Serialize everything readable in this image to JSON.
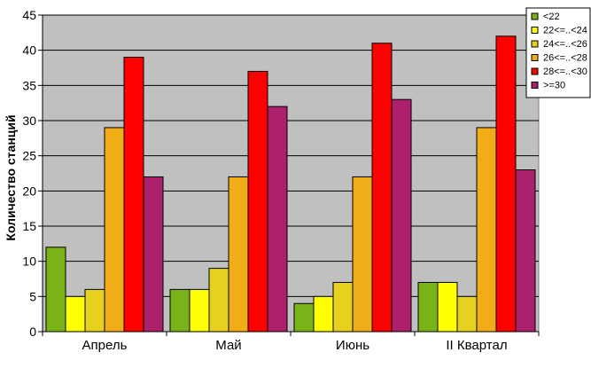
{
  "chart_data": {
    "type": "bar",
    "title": "",
    "xlabel": "",
    "ylabel": "Количество станций",
    "ylim": [
      0,
      45
    ],
    "yticks": [
      0,
      5,
      10,
      15,
      20,
      25,
      30,
      35,
      40,
      45
    ],
    "grid": true,
    "legend_position": "top-right",
    "plot_background": "#c0c0c0",
    "categories": [
      "Апрель",
      "Май",
      "Июнь",
      "II Квартал"
    ],
    "series": [
      {
        "name": "<22",
        "color": "#7ab317",
        "values": [
          12,
          6,
          4,
          7
        ]
      },
      {
        "name": "22<=..<24",
        "color": "#ffff00",
        "values": [
          5,
          6,
          5,
          7
        ]
      },
      {
        "name": "24<=..<26",
        "color": "#e6d21e",
        "values": [
          6,
          9,
          7,
          5
        ]
      },
      {
        "name": "26<=..<28",
        "color": "#f0ad17",
        "values": [
          29,
          22,
          22,
          29
        ]
      },
      {
        "name": "28<=..<30",
        "color": "#ff0000",
        "values": [
          39,
          37,
          41,
          42
        ]
      },
      {
        "name": ">=30",
        "color": "#ad206b",
        "values": [
          22,
          32,
          33,
          23
        ]
      }
    ]
  }
}
